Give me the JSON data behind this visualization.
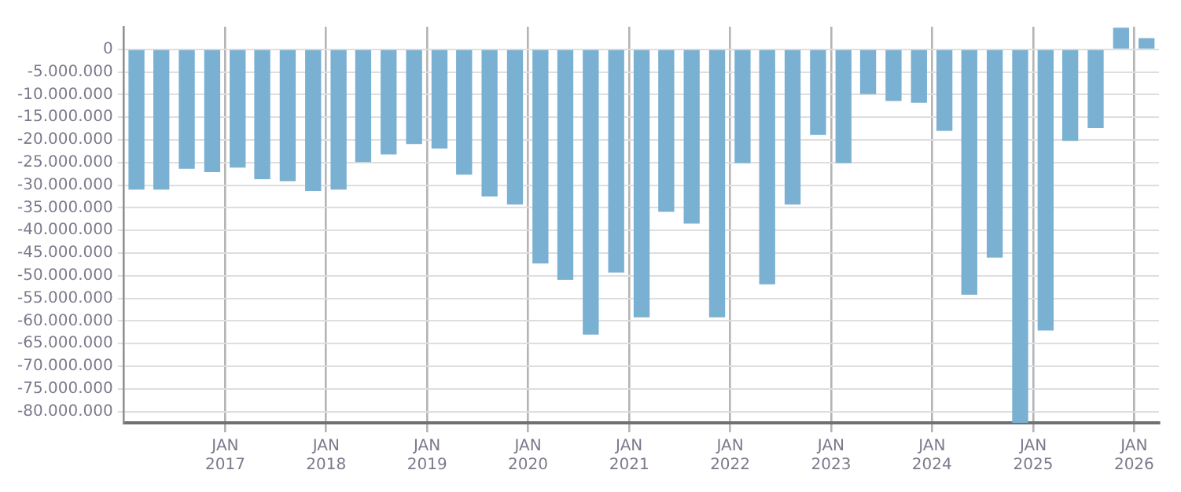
{
  "chart_data": {
    "type": "bar",
    "color": "#7ab0d2",
    "x": [
      "2016-02-15",
      "2016-05-15",
      "2016-08-15",
      "2016-11-15",
      "2017-02-15",
      "2017-05-15",
      "2017-08-15",
      "2017-11-15",
      "2018-02-15",
      "2018-05-15",
      "2018-08-15",
      "2018-11-15",
      "2019-02-15",
      "2019-05-15",
      "2019-08-15",
      "2019-11-15",
      "2020-02-15",
      "2020-05-15",
      "2020-08-15",
      "2020-11-15",
      "2021-02-15",
      "2021-05-15",
      "2021-08-15",
      "2021-11-15",
      "2022-02-15",
      "2022-05-15",
      "2022-08-15",
      "2022-11-15",
      "2023-02-15",
      "2023-05-15",
      "2023-08-15",
      "2023-11-15",
      "2024-02-15",
      "2024-05-15",
      "2024-08-15",
      "2024-11-15",
      "2025-02-15",
      "2025-05-15",
      "2025-08-15",
      "2025-11-15",
      "2026-02-15"
    ],
    "values": [
      -31000000,
      -31000000,
      -26400000,
      -27100000,
      -26100000,
      -28700000,
      -29100000,
      -31300000,
      -31000000,
      -24900000,
      -23200000,
      -20900000,
      -21900000,
      -27700000,
      -32500000,
      -34300000,
      -47300000,
      -50900000,
      -63000000,
      -49300000,
      -59200000,
      -35900000,
      -38500000,
      -59200000,
      -25100000,
      -51900000,
      -34300000,
      -18900000,
      -25100000,
      -9900000,
      -11400000,
      -11800000,
      -18000000,
      -54200000,
      -46000000,
      -82500000,
      -62100000,
      -20200000,
      -17400000,
      4800000,
      2500000
    ],
    "xlim": [
      "2016-01",
      "2026-04"
    ],
    "xticks": [
      {
        "value": "2017-01",
        "label": "JAN 2017"
      },
      {
        "value": "2018-01",
        "label": "JAN 2018"
      },
      {
        "value": "2019-01",
        "label": "JAN 2019"
      },
      {
        "value": "2020-01",
        "label": "JAN 2020"
      },
      {
        "value": "2021-01",
        "label": "JAN 2021"
      },
      {
        "value": "2022-01",
        "label": "JAN 2022"
      },
      {
        "value": "2023-01",
        "label": "JAN 2023"
      },
      {
        "value": "2024-01",
        "label": "JAN 2024"
      },
      {
        "value": "2025-01",
        "label": "JAN 2025"
      },
      {
        "value": "2026-01",
        "label": "JAN 2026"
      }
    ],
    "ylim": [
      -82500000,
      5000000
    ],
    "yticks": [
      {
        "value": 0,
        "label": "0"
      },
      {
        "value": -5000000,
        "label": "-5.000.000"
      },
      {
        "value": -10000000,
        "label": "-10.000.000"
      },
      {
        "value": -15000000,
        "label": "-15.000.000"
      },
      {
        "value": -20000000,
        "label": "-20.000.000"
      },
      {
        "value": -25000000,
        "label": "-25.000.000"
      },
      {
        "value": -30000000,
        "label": "-30.000.000"
      },
      {
        "value": -35000000,
        "label": "-35.000.000"
      },
      {
        "value": -40000000,
        "label": "-40.000.000"
      },
      {
        "value": -45000000,
        "label": "-45.000.000"
      },
      {
        "value": -50000000,
        "label": "-50.000.000"
      },
      {
        "value": -55000000,
        "label": "-55.000.000"
      },
      {
        "value": -60000000,
        "label": "-60.000.000"
      },
      {
        "value": -65000000,
        "label": "-65.000.000"
      },
      {
        "value": -70000000,
        "label": "-70.000.000"
      },
      {
        "value": -75000000,
        "label": "-75.000.000"
      },
      {
        "value": -80000000,
        "label": "-80.000.000"
      }
    ],
    "grid": true,
    "legend": false
  }
}
